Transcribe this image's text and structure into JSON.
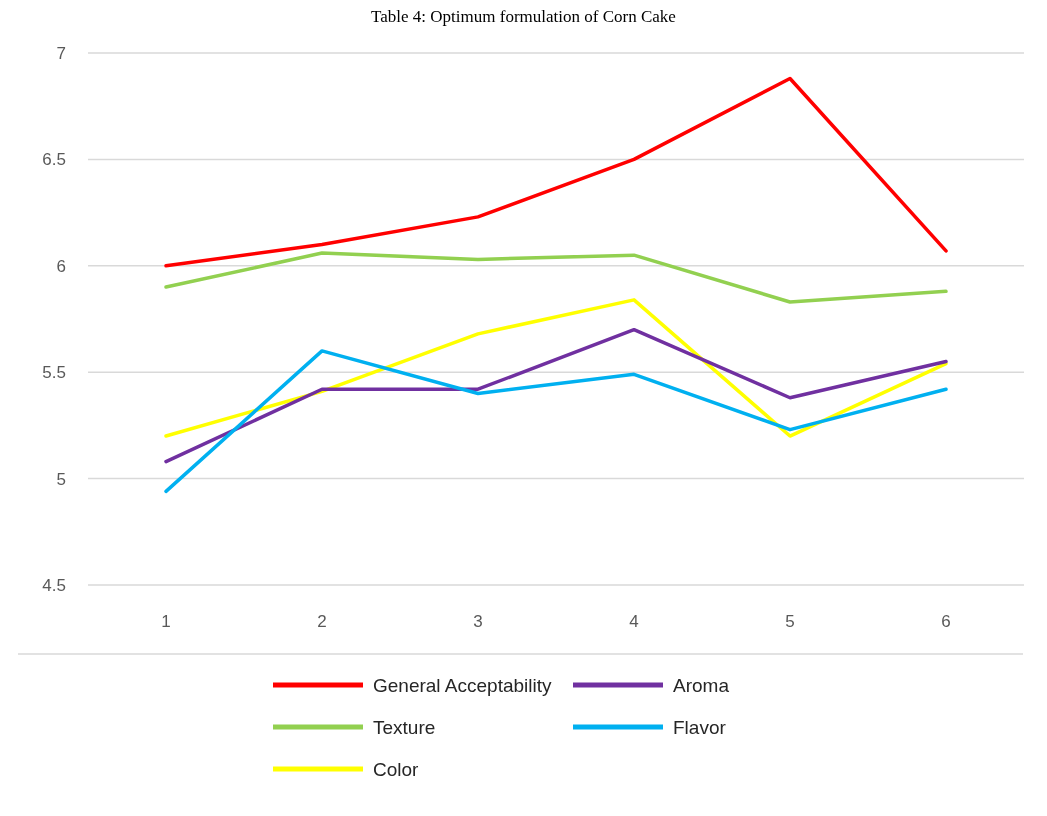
{
  "chart_data": {
    "type": "line",
    "title": "Table 4: Optimum formulation of Corn Cake",
    "categories": [
      "1",
      "2",
      "3",
      "4",
      "5",
      "6"
    ],
    "series": [
      {
        "name": "General Acceptability",
        "color": "#ff0000",
        "values": [
          6.0,
          6.1,
          6.23,
          6.5,
          6.88,
          6.07
        ]
      },
      {
        "name": "Texture",
        "color": "#92d050",
        "values": [
          5.9,
          6.06,
          6.03,
          6.05,
          5.83,
          5.88
        ]
      },
      {
        "name": "Color",
        "color": "#ffff00",
        "values": [
          5.2,
          5.41,
          5.68,
          5.84,
          5.2,
          5.54
        ]
      },
      {
        "name": "Aroma",
        "color": "#7030a0",
        "values": [
          5.08,
          5.42,
          5.42,
          5.7,
          5.38,
          5.55
        ]
      },
      {
        "name": "Flavor",
        "color": "#00b0f0",
        "values": [
          4.94,
          5.6,
          5.4,
          5.49,
          5.23,
          5.42
        ]
      }
    ],
    "ylim": [
      4.5,
      7
    ],
    "yticks": [
      4.5,
      5,
      5.5,
      6,
      6.5,
      7
    ],
    "grid": "y",
    "legend": "bottom",
    "marker": "none",
    "line_style": "solid"
  }
}
